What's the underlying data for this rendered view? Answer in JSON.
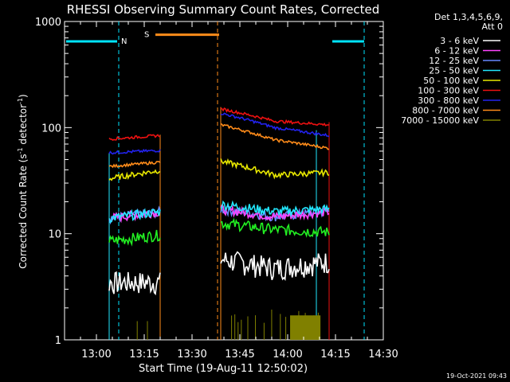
{
  "chart_data": {
    "type": "line",
    "title": "RHESSI Observing Summary Count Rates, Corrected",
    "ylabel": "Corrected Count Rate (s⁻¹ detector⁻¹)",
    "ylabel_parts": [
      "Corrected Count Rate (s",
      "-1",
      " detector",
      "-1",
      ")"
    ],
    "xlabel": "Start Time (19-Aug-11 12:50:02)",
    "yscale": "log",
    "ylim": [
      1,
      1000
    ],
    "xlim": [
      "12:50",
      "14:30"
    ],
    "x_ticks": [
      "13:00",
      "13:15",
      "13:30",
      "13:45",
      "14:00",
      "14:15",
      "14:30"
    ],
    "y_ticks": [
      "1",
      "10",
      "100",
      "1000"
    ],
    "legend_header": [
      "Det 1,3,4,5,6,9,",
      "Att 0"
    ],
    "legend_position": "right",
    "footer_date": "19-Oct-2021 09:43",
    "segments": [
      [
        "13:04",
        "13:20"
      ],
      [
        "13:39",
        "14:13"
      ]
    ],
    "series": [
      {
        "name": "3 - 6 keV",
        "color": "#ffffff",
        "values": [
          3.5,
          5.0
        ]
      },
      {
        "name": "6 - 12 keV",
        "color": "#ff44ff",
        "values": [
          14,
          17
        ]
      },
      {
        "name": "12 - 25 keV",
        "color": "#6688ff",
        "values": [
          14,
          17
        ]
      },
      {
        "name": "25 - 50 keV",
        "color": "#22e8ff",
        "values": [
          14,
          18
        ]
      },
      {
        "name": "50 - 100 keV",
        "color": "#e8e800",
        "values": [
          33,
          42
        ]
      },
      {
        "name": "100 - 300 keV",
        "color": "#ee1111",
        "values": [
          78,
          125
        ]
      },
      {
        "name": "300 - 800 keV",
        "color": "#2222ee",
        "values": [
          58,
          105
        ]
      },
      {
        "name": "800 - 7000 keV",
        "color": "#ff8c1a",
        "values": [
          43,
          85
        ]
      },
      {
        "name": "7000 - 15000 keV",
        "color": "#808000",
        "values": [
          1.3,
          1.3
        ]
      }
    ],
    "green_values": [
      8.5,
      11.5
    ],
    "events": [
      {
        "label": "N",
        "color": "#00e5ff",
        "start": "13:07",
        "end": "14:24",
        "level": 650
      },
      {
        "label": "S",
        "color": "#ff8c1a",
        "start": "13:18",
        "end": "13:38",
        "level": 750
      }
    ]
  }
}
